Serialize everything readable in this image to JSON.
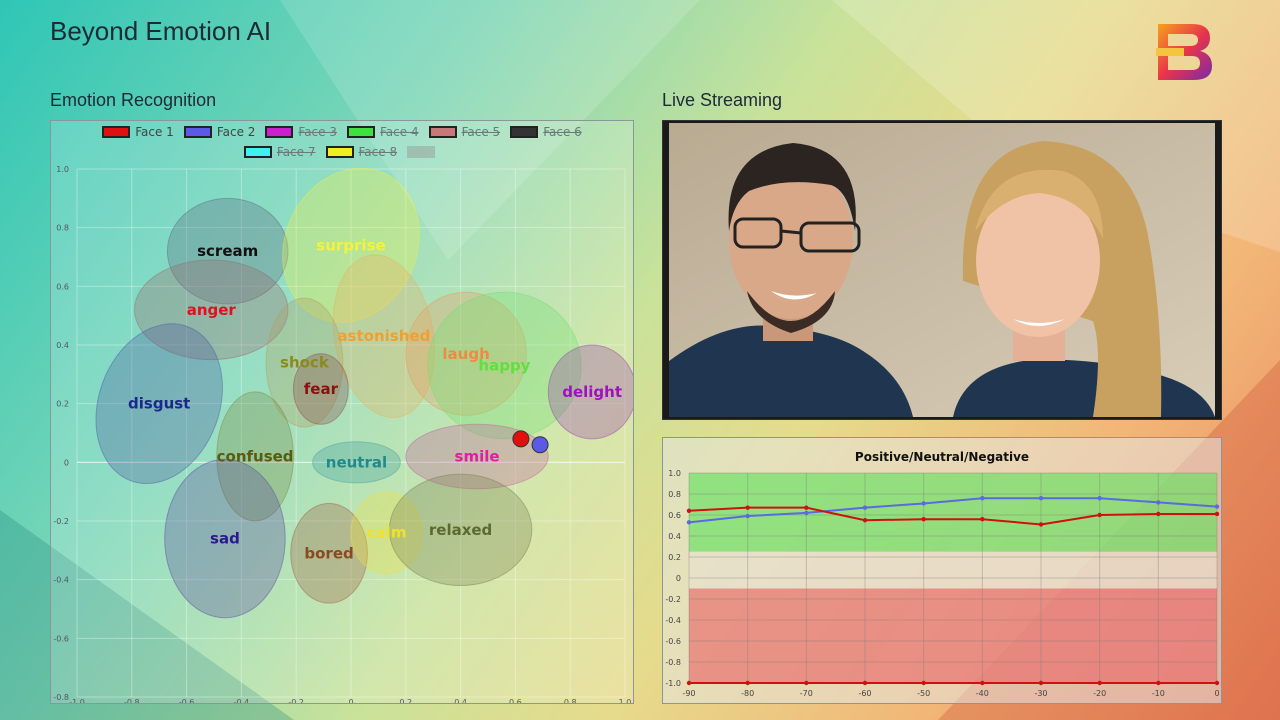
{
  "header": {
    "title": "Beyond Emotion AI"
  },
  "sections": {
    "emotion": "Emotion Recognition",
    "live": "Live Streaming"
  },
  "legend": [
    {
      "label": "Face 1",
      "color": "#e01010",
      "active": true
    },
    {
      "label": "Face 2",
      "color": "#5a5ae6",
      "active": true
    },
    {
      "label": "Face 3",
      "color": "#cc20cc",
      "active": false
    },
    {
      "label": "Face 4",
      "color": "#40e040",
      "active": false
    },
    {
      "label": "Face 5",
      "color": "#c87878",
      "active": false
    },
    {
      "label": "Face 6",
      "color": "#333333",
      "active": false
    },
    {
      "label": "Face 7",
      "color": "#40f0f0",
      "active": false
    },
    {
      "label": "Face 8",
      "color": "#f0f020",
      "active": false
    },
    {
      "label": "",
      "color": "#9aa8a0",
      "active": false
    }
  ],
  "emotion_map": {
    "x_ticks": [
      "-1.0",
      "-0.8",
      "-0.6",
      "-0.4",
      "-0.2",
      "0",
      "0.2",
      "0.4",
      "0.6",
      "0.8",
      "1.0"
    ],
    "y_ticks": [
      "1.0",
      "0.8",
      "0.6",
      "0.4",
      "0.2",
      "0",
      "-0.2",
      "-0.4",
      "-0.6",
      "-0.8"
    ],
    "labels": [
      {
        "text": "scream",
        "color": "#111111"
      },
      {
        "text": "surprise",
        "color": "#f4f436"
      },
      {
        "text": "anger",
        "color": "#e01020"
      },
      {
        "text": "astonished",
        "color": "#f0a030"
      },
      {
        "text": "shock",
        "color": "#8a8a20"
      },
      {
        "text": "laugh",
        "color": "#f08a40"
      },
      {
        "text": "happy",
        "color": "#60e040"
      },
      {
        "text": "delight",
        "color": "#a010c0"
      },
      {
        "text": "disgust",
        "color": "#1a2a8a"
      },
      {
        "text": "fear",
        "color": "#8a1010"
      },
      {
        "text": "confused",
        "color": "#5a5a10"
      },
      {
        "text": "neutral",
        "color": "#208a8a"
      },
      {
        "text": "smile",
        "color": "#e020a0"
      },
      {
        "text": "sad",
        "color": "#2a1a8a"
      },
      {
        "text": "bored",
        "color": "#8a4a20"
      },
      {
        "text": "calm",
        "color": "#f0e030"
      },
      {
        "text": "relaxed",
        "color": "#5a6a30"
      }
    ],
    "faces": [
      {
        "name": "Face 1",
        "x": 0.62,
        "y": 0.08,
        "color": "#e01010"
      },
      {
        "name": "Face 2",
        "x": 0.69,
        "y": 0.06,
        "color": "#5a5ae6"
      }
    ]
  },
  "chart_data": {
    "type": "line",
    "title": "Positive/Neutral/Negative",
    "x": [
      -90,
      -80,
      -70,
      -60,
      -50,
      -40,
      -30,
      -20,
      -10,
      0
    ],
    "x_ticks": [
      "-90",
      "-80",
      "-70",
      "-60",
      "-50",
      "-40",
      "-30",
      "-20",
      "-10",
      "0"
    ],
    "y_ticks": [
      "1.0",
      "0.8",
      "0.6",
      "0.4",
      "0.2",
      "0",
      "-0.2",
      "-0.4",
      "-0.6",
      "-0.8",
      "-1.0"
    ],
    "ylim": [
      -1,
      1
    ],
    "series": [
      {
        "color": "#5a6ae0",
        "values": [
          0.53,
          0.59,
          0.62,
          0.67,
          0.71,
          0.76,
          0.76,
          0.76,
          0.72,
          0.68
        ]
      },
      {
        "color": "#d01010",
        "values": [
          0.64,
          0.67,
          0.67,
          0.55,
          0.56,
          0.56,
          0.51,
          0.6,
          0.61,
          0.61
        ]
      },
      {
        "color": "#d01010",
        "values": [
          -1.0,
          -1.0,
          -1.0,
          -1.0,
          -1.0,
          -1.0,
          -1.0,
          -1.0,
          -1.0,
          -1.0
        ]
      }
    ],
    "bands": [
      {
        "name": "positive",
        "color": "#66e060"
      },
      {
        "name": "neutral",
        "color": "#e8e0d0"
      },
      {
        "name": "negative",
        "color": "#e86a6a"
      }
    ],
    "grid": true
  }
}
